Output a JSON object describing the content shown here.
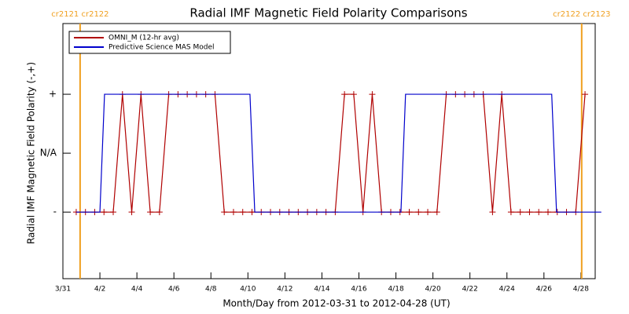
{
  "chart_data": {
    "type": "line",
    "title": "Radial IMF Magnetic Field Polarity Comparisons",
    "xlabel": "Month/Day from 2012-03-31 to 2012-04-28 (UT)",
    "ylabel": "Radial IMF Magnetic Field Polarity (-,+)",
    "xlim": [
      0,
      28.77
    ],
    "ylim": [
      -2.13,
      2.2
    ],
    "xticks": [
      {
        "value": 0,
        "label": "3/31"
      },
      {
        "value": 2,
        "label": "4/2"
      },
      {
        "value": 4,
        "label": "4/4"
      },
      {
        "value": 6,
        "label": "4/6"
      },
      {
        "value": 8,
        "label": "4/8"
      },
      {
        "value": 10,
        "label": "4/10"
      },
      {
        "value": 12,
        "label": "4/12"
      },
      {
        "value": 14,
        "label": "4/14"
      },
      {
        "value": 16,
        "label": "4/16"
      },
      {
        "value": 18,
        "label": "4/18"
      },
      {
        "value": 20,
        "label": "4/20"
      },
      {
        "value": 22,
        "label": "4/22"
      },
      {
        "value": 24,
        "label": "4/24"
      },
      {
        "value": 26,
        "label": "4/26"
      },
      {
        "value": 28,
        "label": "4/28"
      }
    ],
    "yticks": [
      {
        "value": -1,
        "label": "-"
      },
      {
        "value": 0,
        "label": "N/A"
      },
      {
        "value": 1,
        "label": "+"
      }
    ],
    "legend": "upper left",
    "markers": [
      {
        "x": 0.93,
        "label": "cr2121 cr2122",
        "color": "#f0a020"
      },
      {
        "x": 28.04,
        "label": "cr2122 cr2123",
        "color": "#f0a020"
      }
    ],
    "series": [
      {
        "name": "OMNI_M (12-hr avg)",
        "color": "#b00000",
        "x": [
          0.72,
          1.22,
          1.72,
          2.22,
          2.72,
          3.22,
          3.72,
          4.22,
          4.72,
          5.22,
          5.72,
          6.22,
          6.72,
          7.22,
          7.72,
          8.22,
          8.72,
          9.22,
          9.72,
          10.22,
          10.72,
          11.22,
          11.72,
          12.22,
          12.72,
          13.22,
          13.72,
          14.22,
          14.72,
          15.22,
          15.72,
          16.22,
          16.72,
          17.22,
          17.72,
          18.22,
          18.72,
          19.22,
          19.72,
          20.22,
          20.72,
          21.22,
          21.72,
          22.22,
          22.72,
          23.22,
          23.72,
          24.22,
          24.72,
          25.22,
          25.72,
          26.22,
          26.72,
          27.22,
          27.72,
          28.22
        ],
        "values": [
          -1,
          -1,
          -1,
          -1,
          -1,
          1,
          -1,
          1,
          -1,
          -1,
          1,
          1,
          1,
          1,
          1,
          1,
          -1,
          -1,
          -1,
          -1,
          -1,
          -1,
          -1,
          -1,
          -1,
          -1,
          -1,
          -1,
          -1,
          1,
          1,
          -1,
          1,
          -1,
          -1,
          -1,
          -1,
          -1,
          -1,
          -1,
          1,
          1,
          1,
          1,
          1,
          -1,
          1,
          -1,
          -1,
          -1,
          -1,
          -1,
          -1,
          -1,
          -1,
          1
        ]
      },
      {
        "name": "Predictive Science MAS Model",
        "color": "#0000cc",
        "x": [
          0.72,
          2.0,
          2.25,
          10.11,
          10.37,
          18.27,
          18.52,
          26.42,
          26.68,
          29.1
        ],
        "values": [
          -1,
          -1,
          1,
          1,
          -1,
          -1,
          1,
          1,
          -1,
          -1
        ]
      }
    ]
  }
}
